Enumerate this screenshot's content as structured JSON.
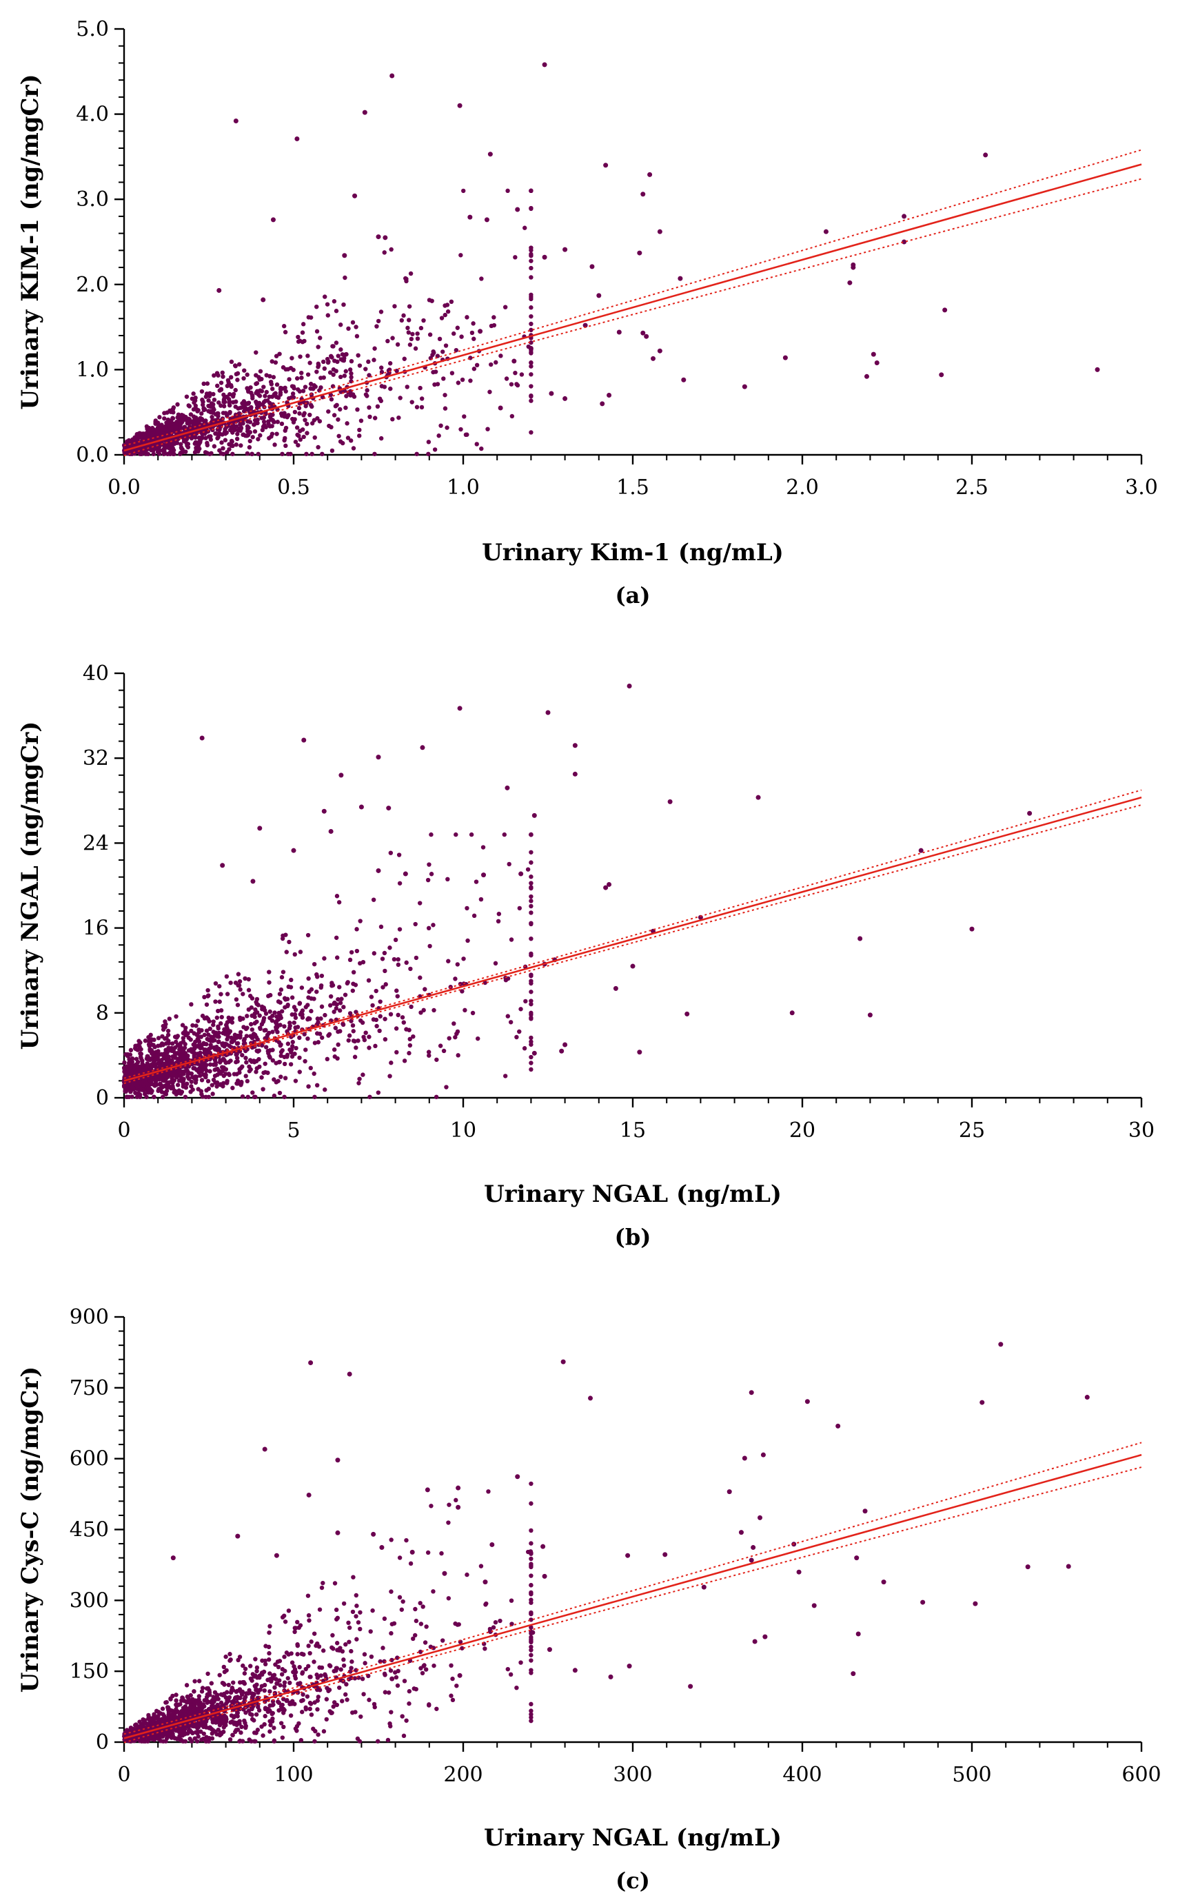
{
  "chart_data": [
    {
      "type": "scatter",
      "panel_label": "(a)",
      "xlabel": "Urinary Kim-1 (ng/mL)",
      "ylabel": "Urinary KIM-1 (ng/mgCr)",
      "xlim": [
        0,
        3.0
      ],
      "ylim": [
        0,
        5.0
      ],
      "xticks": [
        "0.0",
        "0.5",
        "1.0",
        "1.5",
        "2.0",
        "2.5",
        "3.0"
      ],
      "yticks": [
        "0.0",
        "1.0",
        "2.0",
        "3.0",
        "4.0",
        "5.0"
      ],
      "fit": {
        "intercept": 0.05,
        "slope": 1.12,
        "ci_spread_at_xmax": 0.17
      },
      "points": [
        [
          1.24,
          4.58
        ],
        [
          0.79,
          4.45
        ],
        [
          0.99,
          4.1
        ],
        [
          0.71,
          4.02
        ],
        [
          0.33,
          3.92
        ],
        [
          0.51,
          3.71
        ],
        [
          1.08,
          3.53
        ],
        [
          2.54,
          3.52
        ],
        [
          1.42,
          3.4
        ],
        [
          1.55,
          3.29
        ],
        [
          1.53,
          3.06
        ],
        [
          0.68,
          3.04
        ],
        [
          2.3,
          2.8
        ],
        [
          1.16,
          2.88
        ],
        [
          0.44,
          2.76
        ],
        [
          1.02,
          2.79
        ],
        [
          1.07,
          2.76
        ],
        [
          0.75,
          2.56
        ],
        [
          2.07,
          2.62
        ],
        [
          1.58,
          2.62
        ],
        [
          0.77,
          2.55
        ],
        [
          0.65,
          2.34
        ],
        [
          1.3,
          2.41
        ],
        [
          1.24,
          2.32
        ],
        [
          1.52,
          2.37
        ],
        [
          1.38,
          2.21
        ],
        [
          2.15,
          2.23
        ],
        [
          2.15,
          2.2
        ],
        [
          1.64,
          2.07
        ],
        [
          0.28,
          1.93
        ],
        [
          2.3,
          2.5
        ],
        [
          1.4,
          1.87
        ],
        [
          0.41,
          1.82
        ],
        [
          2.14,
          2.02
        ],
        [
          2.42,
          1.7
        ],
        [
          1.36,
          1.52
        ],
        [
          1.53,
          1.43
        ],
        [
          1.46,
          1.44
        ],
        [
          1.54,
          1.39
        ],
        [
          1.58,
          1.22
        ],
        [
          1.56,
          1.13
        ],
        [
          1.95,
          1.14
        ],
        [
          2.21,
          1.18
        ],
        [
          2.22,
          1.08
        ],
        [
          2.19,
          0.92
        ],
        [
          2.41,
          0.94
        ],
        [
          2.87,
          1.0
        ],
        [
          1.83,
          0.8
        ],
        [
          1.65,
          0.88
        ],
        [
          1.43,
          0.7
        ],
        [
          1.3,
          0.66
        ],
        [
          1.41,
          0.6
        ],
        [
          1.11,
          0.55
        ],
        [
          1.26,
          0.72
        ],
        [
          1.2,
          1.25
        ],
        [
          1.15,
          1.1
        ],
        [
          1.05,
          1.45
        ]
      ]
    },
    {
      "type": "scatter",
      "panel_label": "(b)",
      "xlabel": "Urinary NGAL (ng/mL)",
      "ylabel": "Urinary NGAL (ng/mgCr)",
      "xlim": [
        0,
        30
      ],
      "ylim": [
        0,
        40
      ],
      "xticks": [
        "0",
        "5",
        "10",
        "15",
        "20",
        "25",
        "30"
      ],
      "yticks": [
        "0",
        "8",
        "16",
        "24",
        "32",
        "40"
      ],
      "fit": {
        "intercept": 1.6,
        "slope": 0.89,
        "ci_spread_at_xmax": 0.7
      },
      "points": [
        [
          14.9,
          38.8
        ],
        [
          9.9,
          36.7
        ],
        [
          12.5,
          36.3
        ],
        [
          2.3,
          33.9
        ],
        [
          5.3,
          33.7
        ],
        [
          13.3,
          33.2
        ],
        [
          8.8,
          33.0
        ],
        [
          7.5,
          32.1
        ],
        [
          6.4,
          30.4
        ],
        [
          13.3,
          30.5
        ],
        [
          11.3,
          29.2
        ],
        [
          18.7,
          28.3
        ],
        [
          16.1,
          27.9
        ],
        [
          5.9,
          27.0
        ],
        [
          7.0,
          27.4
        ],
        [
          7.8,
          27.3
        ],
        [
          12.1,
          26.6
        ],
        [
          26.7,
          26.8
        ],
        [
          4.0,
          25.4
        ],
        [
          6.1,
          25.1
        ],
        [
          5.0,
          23.3
        ],
        [
          2.9,
          21.9
        ],
        [
          8.3,
          21.1
        ],
        [
          11.7,
          21.1
        ],
        [
          7.5,
          21.4
        ],
        [
          10.6,
          21.0
        ],
        [
          14.3,
          20.1
        ],
        [
          14.2,
          19.8
        ],
        [
          3.8,
          20.4
        ],
        [
          23.5,
          23.3
        ],
        [
          17.0,
          17.0
        ],
        [
          21.7,
          15.0
        ],
        [
          25.0,
          15.9
        ],
        [
          15.6,
          15.7
        ],
        [
          15.0,
          12.4
        ],
        [
          12.4,
          12.6
        ],
        [
          12.7,
          13.0
        ],
        [
          14.5,
          10.3
        ],
        [
          16.6,
          7.9
        ],
        [
          19.7,
          8.0
        ],
        [
          22.0,
          7.8
        ],
        [
          15.2,
          4.3
        ],
        [
          13.0,
          5.0
        ],
        [
          12.9,
          4.4
        ],
        [
          12.1,
          4.2
        ]
      ]
    },
    {
      "type": "scatter",
      "panel_label": "(c)",
      "xlabel": "Urinary NGAL (ng/mL)",
      "ylabel": "Urinary Cys-C (ng/mgCr)",
      "xlim": [
        0,
        600
      ],
      "ylim": [
        0,
        900
      ],
      "xticks": [
        "0",
        "100",
        "200",
        "300",
        "400",
        "500",
        "600"
      ],
      "yticks": [
        "0",
        "150",
        "300",
        "450",
        "600",
        "750",
        "900"
      ],
      "fit": {
        "intercept": 8,
        "slope": 1.0,
        "ci_spread_at_xmax": 26
      },
      "points": [
        [
          517,
          842
        ],
        [
          110,
          803
        ],
        [
          259,
          805
        ],
        [
          133,
          779
        ],
        [
          370,
          740
        ],
        [
          568,
          730
        ],
        [
          275,
          728
        ],
        [
          403,
          721
        ],
        [
          506,
          719
        ],
        [
          421,
          669
        ],
        [
          83,
          620
        ],
        [
          126,
          597
        ],
        [
          366,
          601
        ],
        [
          377,
          608
        ],
        [
          109,
          523
        ],
        [
          179,
          534
        ],
        [
          197,
          538
        ],
        [
          232,
          562
        ],
        [
          357,
          530
        ],
        [
          67,
          436
        ],
        [
          126,
          443
        ],
        [
          147,
          440
        ],
        [
          197,
          497
        ],
        [
          217,
          418
        ],
        [
          247,
          414
        ],
        [
          364,
          444
        ],
        [
          371,
          412
        ],
        [
          375,
          475
        ],
        [
          395,
          419
        ],
        [
          437,
          489
        ],
        [
          29,
          390
        ],
        [
          90,
          395
        ],
        [
          152,
          412
        ],
        [
          170,
          402
        ],
        [
          189,
          357
        ],
        [
          213,
          339
        ],
        [
          248,
          351
        ],
        [
          297,
          395
        ],
        [
          319,
          397
        ],
        [
          342,
          328
        ],
        [
          370,
          385
        ],
        [
          398,
          360
        ],
        [
          432,
          390
        ],
        [
          448,
          339
        ],
        [
          533,
          371
        ],
        [
          557,
          372
        ],
        [
          471,
          296
        ],
        [
          502,
          293
        ],
        [
          407,
          289
        ],
        [
          378,
          223
        ],
        [
          372,
          213
        ],
        [
          433,
          229
        ],
        [
          430,
          145
        ],
        [
          334,
          118
        ],
        [
          287,
          138
        ],
        [
          266,
          152
        ],
        [
          298,
          161
        ],
        [
          251,
          196
        ],
        [
          241,
          232
        ],
        [
          216,
          234
        ],
        [
          198,
          141
        ],
        [
          158,
          134
        ]
      ]
    }
  ]
}
